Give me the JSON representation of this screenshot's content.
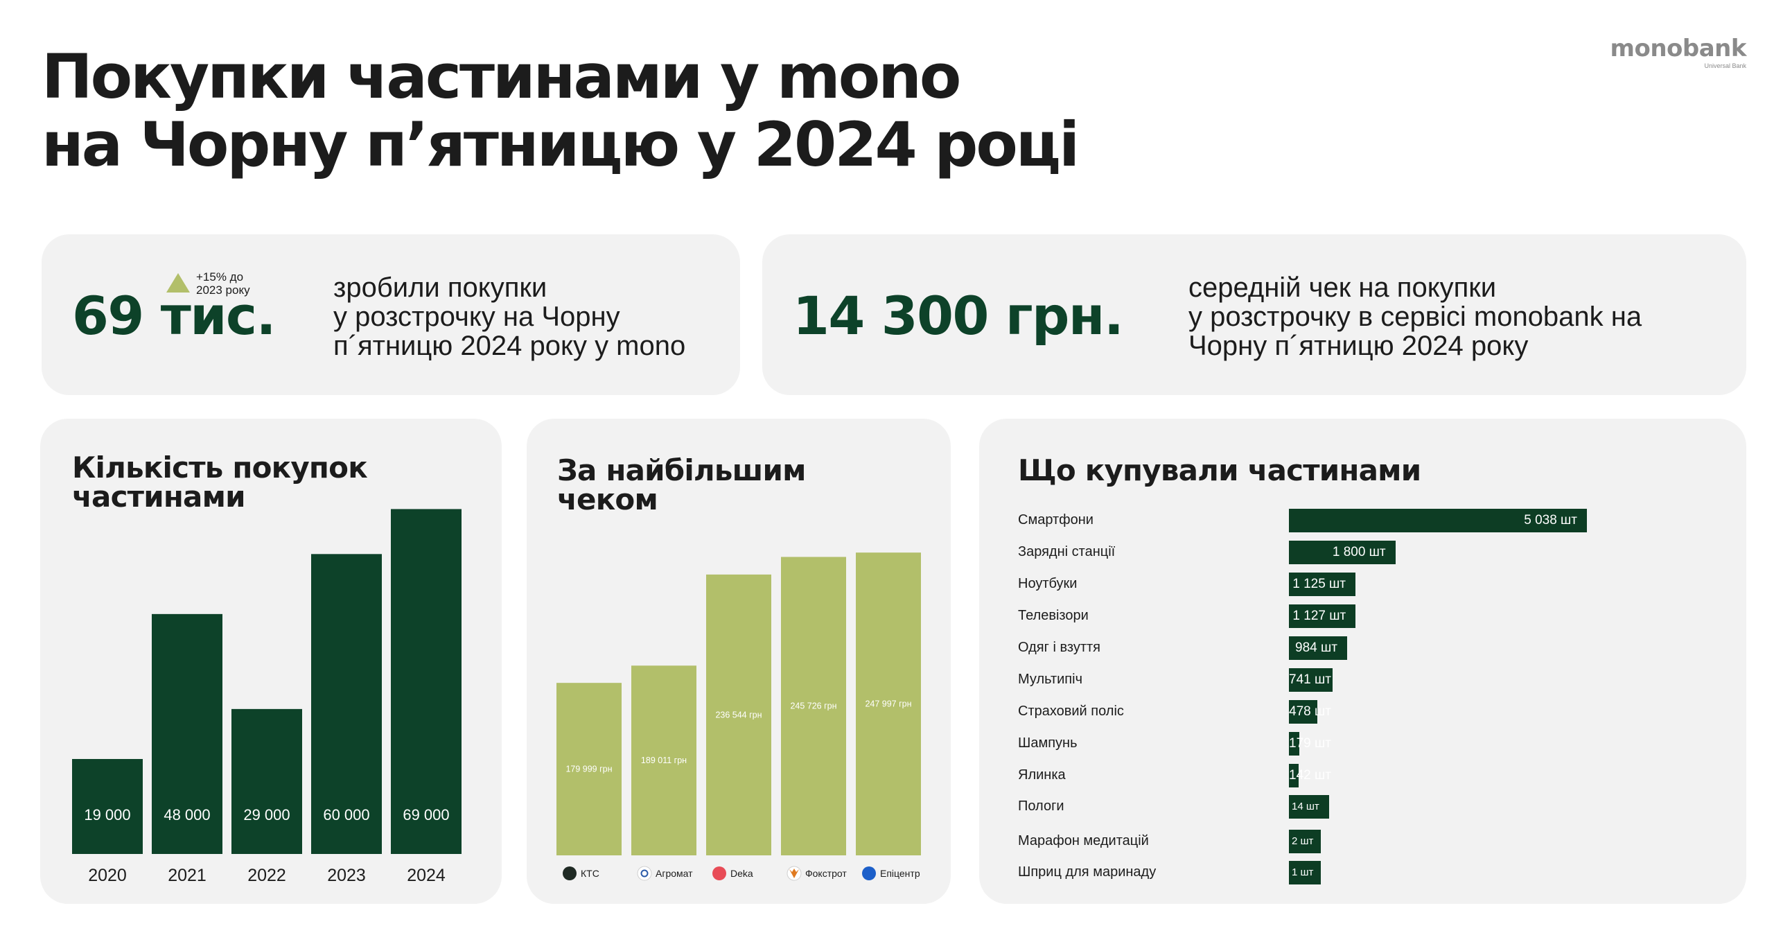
{
  "title_lines": [
    "Покупки частинами у mono",
    "на Чорну п’ятницю у 2024 році"
  ],
  "logo": {
    "name": "monobank",
    "sub": "Universal Bank"
  },
  "colors": {
    "dark_green": "#0d4229",
    "olive": "#b2bf6a",
    "card_bg": "#f2f2f2"
  },
  "stat_purchases": {
    "value": "69 тис.",
    "badge_icon": "triangle-up-icon",
    "badge_lines": [
      "+15% до",
      "2023 року"
    ],
    "desc_lines": [
      "зробили покупки",
      "у розстрочку на Чорну",
      "п´ятницю 2024 року у mono"
    ]
  },
  "stat_avg_check": {
    "value": "14 300 грн.",
    "desc_lines": [
      "середній чек на покупки",
      "у розстрочку в сервісі monobank на",
      "Чорну п´ятницю 2024 року"
    ]
  },
  "chart_data": [
    {
      "type": "bar",
      "title": "Кількість покупок частинами",
      "title_lines": [
        "Кількість покупок",
        "частинами"
      ],
      "categories": [
        "2020",
        "2021",
        "2022",
        "2023",
        "2024"
      ],
      "values": [
        19000,
        48000,
        29000,
        60000,
        69000
      ],
      "value_labels": [
        "19 000",
        "48 000",
        "29 000",
        "60 000",
        "69 000"
      ],
      "ylim": [
        0,
        71000
      ],
      "grid": false,
      "color": "#0d4229"
    },
    {
      "type": "bar",
      "title": "За найбільшим чеком",
      "title_lines": [
        "За найбільшим",
        "чеком"
      ],
      "categories": [
        "КТС",
        "Агромат",
        "Deka",
        "Фокстрот",
        "Епіцентр"
      ],
      "category_icons": [
        "kts-logo-icon",
        "agromat-logo-icon",
        "deka-logo-icon",
        "foxtrot-logo-icon",
        "epicentr-logo-icon"
      ],
      "values": [
        179999,
        189011,
        236544,
        245726,
        247997
      ],
      "value_labels": [
        "179 999 грн",
        "189 011 грн",
        "236 544 грн",
        "245 726 грн",
        "247 997 грн"
      ],
      "ylim": [
        90000,
        260000
      ],
      "grid": false,
      "color": "#b2bf6a"
    },
    {
      "type": "bar",
      "orientation": "horizontal",
      "title": "Що купували частинами",
      "categories": [
        "Смартфони",
        "Зарядні станції",
        "Ноутбуки",
        "Телевізори",
        "Одяг і взуття",
        "Мультипіч",
        "Страховий поліс",
        "Шампунь",
        "Ялинка",
        "Пологи",
        "Марафон медитацій",
        "Шприц для маринаду"
      ],
      "values": [
        5038,
        1800,
        1125,
        1127,
        984,
        741,
        478,
        179,
        142,
        14,
        2,
        1
      ],
      "value_labels": [
        "5 038 шт",
        "1 800 шт",
        "1 125 шт",
        "1 127 шт",
        "984 шт",
        "741 шт",
        "478 шт",
        "179 шт",
        "142 шт",
        "14 шт",
        "2 шт",
        "1 шт"
      ],
      "grid": false,
      "color": "#0d3d24"
    }
  ]
}
